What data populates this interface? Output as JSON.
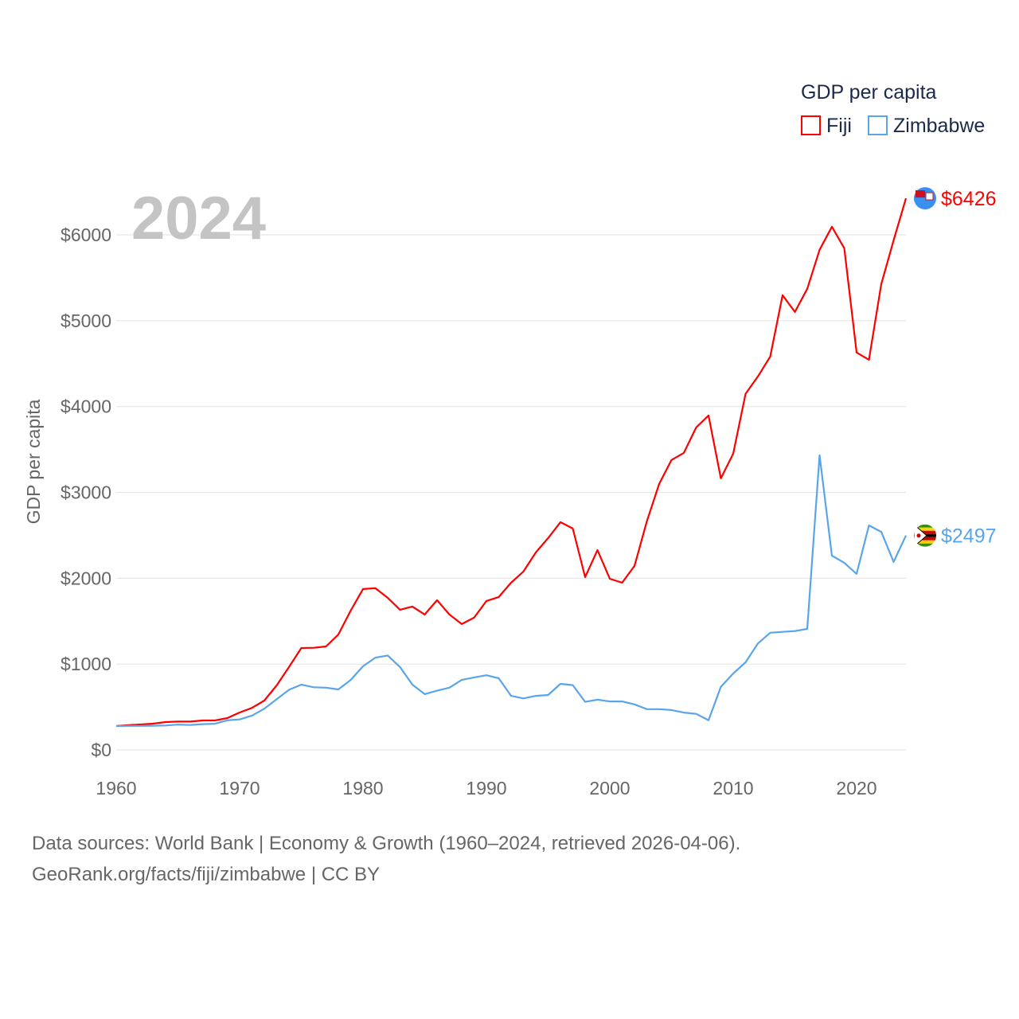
{
  "chart_data": {
    "type": "line",
    "title": "GDP per capita",
    "xlabel": "",
    "ylabel": "GDP per capita",
    "watermark_year": "2024",
    "xlim": [
      1960,
      2024
    ],
    "ylim": [
      0,
      6000
    ],
    "grid": true,
    "legend_placement": "top-right",
    "x_ticks": [
      1960,
      1970,
      1980,
      1990,
      2000,
      2010,
      2020
    ],
    "x_tick_labels": [
      "1960",
      "1970",
      "1980",
      "1990",
      "2000",
      "2010",
      "2020"
    ],
    "y_ticks": [
      0,
      1000,
      2000,
      3000,
      4000,
      5000,
      6000
    ],
    "y_tick_labels": [
      "$0",
      "$1000",
      "$2000",
      "$3000",
      "$4000",
      "$5000",
      "$6000"
    ],
    "x": [
      1960,
      1961,
      1962,
      1963,
      1964,
      1965,
      1966,
      1967,
      1968,
      1969,
      1970,
      1971,
      1972,
      1973,
      1974,
      1975,
      1976,
      1977,
      1978,
      1979,
      1980,
      1981,
      1982,
      1983,
      1984,
      1985,
      1986,
      1987,
      1988,
      1989,
      1990,
      1991,
      1992,
      1993,
      1994,
      1995,
      1996,
      1997,
      1998,
      1999,
      2000,
      2001,
      2002,
      2003,
      2004,
      2005,
      2006,
      2007,
      2008,
      2009,
      2010,
      2011,
      2012,
      2013,
      2014,
      2015,
      2016,
      2017,
      2018,
      2019,
      2020,
      2021,
      2022,
      2023,
      2024
    ],
    "series": [
      {
        "name": "Fiji",
        "color": "#ff0000",
        "end_label": "$6426",
        "flag": "fiji-flag",
        "values": [
          278,
          288,
          297,
          306,
          325,
          330,
          330,
          343,
          343,
          371,
          436,
          490,
          575,
          751,
          965,
          1187,
          1190,
          1206,
          1345,
          1623,
          1874,
          1883,
          1772,
          1633,
          1670,
          1577,
          1744,
          1577,
          1466,
          1540,
          1735,
          1781,
          1948,
          2078,
          2300,
          2468,
          2653,
          2579,
          2013,
          2328,
          1994,
          1948,
          2143,
          2662,
          3098,
          3377,
          3460,
          3757,
          3896,
          3163,
          3451,
          4147,
          4350,
          4582,
          5297,
          5102,
          5371,
          5826,
          6095,
          5844,
          4629,
          4545,
          5427,
          5937,
          6426
        ]
      },
      {
        "name": "Zimbabwe",
        "color": "#5aa5ea",
        "end_label": "$2497",
        "flag": "zimbabwe-flag",
        "values": [
          278,
          280,
          280,
          282,
          285,
          295,
          290,
          300,
          305,
          345,
          355,
          400,
          480,
          590,
          700,
          760,
          730,
          725,
          705,
          815,
          975,
          1075,
          1100,
          965,
          760,
          650,
          690,
          725,
          815,
          845,
          870,
          835,
          630,
          600,
          630,
          640,
          770,
          755,
          560,
          585,
          565,
          565,
          530,
          475,
          475,
          465,
          435,
          420,
          345,
          735,
          890,
          1020,
          1240,
          1365,
          1375,
          1385,
          1410,
          3432,
          2263,
          2180,
          2050,
          2615,
          2540,
          2190,
          2497
        ]
      }
    ]
  },
  "footer": {
    "line1": "Data sources: World Bank | Economy & Growth (1960–2024, retrieved 2026-04-06).",
    "line2": "GeoRank.org/facts/fiji/zimbabwe | CC BY"
  }
}
